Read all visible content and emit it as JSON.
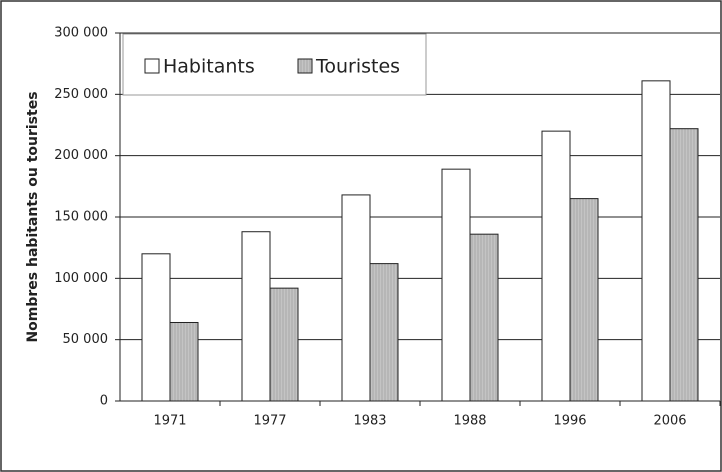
{
  "chart_data": {
    "type": "bar",
    "y_label": "Nombres habitants ou touristes",
    "categories": [
      "1971",
      "1977",
      "1983",
      "1988",
      "1996",
      "2006"
    ],
    "series": [
      {
        "name": "Habitants",
        "color": "#ffffff",
        "values": [
          120000,
          138000,
          168000,
          189000,
          220000,
          261000
        ]
      },
      {
        "name": "Touristes",
        "color": "#c0c0c0",
        "values": [
          64000,
          92000,
          112000,
          136000,
          165000,
          222000
        ]
      }
    ],
    "ylim": [
      0,
      300000
    ],
    "yticks": [
      0,
      {
        "value": 50000,
        "label": "50 000"
      },
      {
        "value": 100000,
        "label": "100 000"
      },
      {
        "value": 150000,
        "label": "150 000"
      },
      {
        "value": 200000,
        "label": "200 000"
      },
      {
        "value": 250000,
        "label": "250 000"
      },
      {
        "value": 300000,
        "label": "300 000"
      }
    ],
    "grid": true,
    "legend": "top-left"
  }
}
